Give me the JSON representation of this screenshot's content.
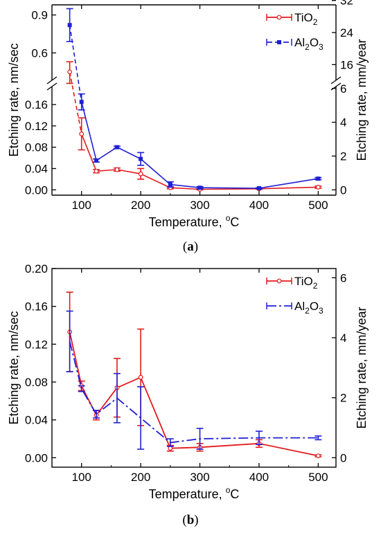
{
  "colors": {
    "tio2": "#e31a1c",
    "al2o3": "#1f1fd6"
  },
  "chart_data": [
    {
      "panel": "a",
      "type": "line",
      "caption": {
        "open": "(",
        "letter": "a",
        "close": ")"
      },
      "xlabel": "Temperature, °C",
      "xlabel_parts": {
        "prefix": "Temperature, ",
        "sup": "o",
        "suffix": "C"
      },
      "ylabel": "Etching rate, nm/sec",
      "y2label": "Etching rate, mm/year",
      "xlim": [
        50,
        530
      ],
      "x_ticks": [
        100,
        200,
        300,
        400,
        500
      ],
      "broken_y_axis": true,
      "ylim_lower": [
        -0.01,
        0.19
      ],
      "y_ticks_lower": [
        "0.00",
        "0.04",
        "0.08",
        "0.12",
        "0.16"
      ],
      "ylim_upper": [
        0.4,
        0.98
      ],
      "y_ticks_upper": [
        "0.6",
        "0.9"
      ],
      "y2_ticks_lower": [
        "0",
        "2",
        "4",
        "6"
      ],
      "y2_ticks_upper": [
        "16",
        "24",
        "32"
      ],
      "legend_position": "top-right",
      "series": [
        {
          "name": "TiO2",
          "legend_label": {
            "main": "TiO",
            "sub": "2"
          },
          "color_key": "tio2",
          "marker": "open-circle",
          "x": [
            80,
            100,
            125,
            160,
            200,
            250,
            300,
            400,
            500
          ],
          "y": [
            0.45,
            0.105,
            0.035,
            0.038,
            0.03,
            0.004,
            0.001,
            0.002,
            0.005
          ],
          "err": [
            0.08,
            0.03,
            0.003,
            0.003,
            0.01,
            0.002,
            0.001,
            0.001,
            0.002
          ]
        },
        {
          "name": "Al2O3",
          "legend_label": {
            "main": "Al",
            "sub1": "2",
            "mid": "O",
            "sub2": "3"
          },
          "color_key": "al2o3",
          "marker": "filled-square",
          "x": [
            80,
            100,
            125,
            160,
            200,
            250,
            300,
            400,
            500
          ],
          "y": [
            0.82,
            0.165,
            0.055,
            0.08,
            0.058,
            0.01,
            0.004,
            0.003,
            0.021
          ],
          "err": [
            0.13,
            0.015,
            0.003,
            0.002,
            0.012,
            0.005,
            0.002,
            0.001,
            0.002
          ]
        }
      ]
    },
    {
      "panel": "b",
      "type": "line",
      "caption": {
        "open": "(",
        "letter": "b",
        "close": ")"
      },
      "xlabel": "Temperature, °C",
      "xlabel_parts": {
        "prefix": "Temperature, ",
        "sup": "o",
        "suffix": "C"
      },
      "ylabel": "Etching rate, nm/sec",
      "y2label": "Etching rate, mm/year",
      "xlim": [
        50,
        530
      ],
      "x_ticks": [
        100,
        200,
        300,
        400,
        500
      ],
      "ylim": [
        -0.01,
        0.2
      ],
      "y_ticks": [
        "0.00",
        "0.04",
        "0.08",
        "0.12",
        "0.16",
        "0.20"
      ],
      "y2_ticks": [
        "0",
        "2",
        "4",
        "6"
      ],
      "legend_position": "top-right",
      "series": [
        {
          "name": "TiO2",
          "legend_label": {
            "main": "TiO",
            "sub": "2"
          },
          "color_key": "tio2",
          "marker": "open-circle",
          "x": [
            80,
            100,
            125,
            160,
            200,
            250,
            300,
            400,
            500
          ],
          "y": [
            0.133,
            0.076,
            0.045,
            0.074,
            0.085,
            0.01,
            0.011,
            0.015,
            0.002
          ],
          "err": [
            0.042,
            0.005,
            0.005,
            0.031,
            0.051,
            0.003,
            0.004,
            0.004,
            0.001
          ]
        },
        {
          "name": "Al2O3",
          "legend_label": {
            "main": "Al",
            "sub1": "2",
            "mid": "O",
            "sub2": "3"
          },
          "color_key": "al2o3",
          "marker": "none",
          "x": [
            80,
            100,
            125,
            160,
            200,
            250,
            300,
            400,
            500
          ],
          "y": [
            0.123,
            0.073,
            0.046,
            0.063,
            0.042,
            0.016,
            0.02,
            0.021,
            0.021
          ],
          "err": [
            0.032,
            0.003,
            0.004,
            0.026,
            0.033,
            0.004,
            0.011,
            0.007,
            0.002
          ]
        }
      ]
    }
  ]
}
